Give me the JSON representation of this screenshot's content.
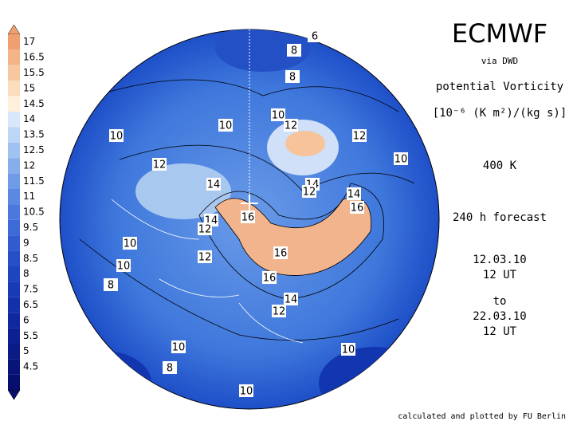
{
  "colorbar": {
    "labels": [
      "17",
      "16.5",
      "15.5",
      "15",
      "14.5",
      "14",
      "13.5",
      "12.5",
      "12",
      "11.5",
      "11",
      "10.5",
      "9.5",
      "9",
      "8.5",
      "8",
      "7.5",
      "6.5",
      "6",
      "5.5",
      "5",
      "4.5"
    ]
  },
  "header": {
    "title": "ECMWF",
    "source": "via DWD",
    "quantity": "potential Vorticity",
    "unit": "[10⁻⁶ (K m²)/(kg s)]",
    "level": "400 K",
    "forecast": "240 h forecast",
    "from_date": "12.03.10",
    "from_time": "12 UT",
    "to": "to",
    "to_date": "22.03.10",
    "to_time": "12 UT"
  },
  "contour_labels": [
    "6",
    "8",
    "8",
    "10",
    "12",
    "10",
    "10",
    "12",
    "10",
    "12",
    "14",
    "14",
    "12",
    "14",
    "16",
    "16",
    "14",
    "12",
    "10",
    "12",
    "10",
    "8",
    "16",
    "16",
    "14",
    "12",
    "10",
    "10",
    "8",
    "10"
  ],
  "footer": "calculated and plotted by FU Berlin"
}
